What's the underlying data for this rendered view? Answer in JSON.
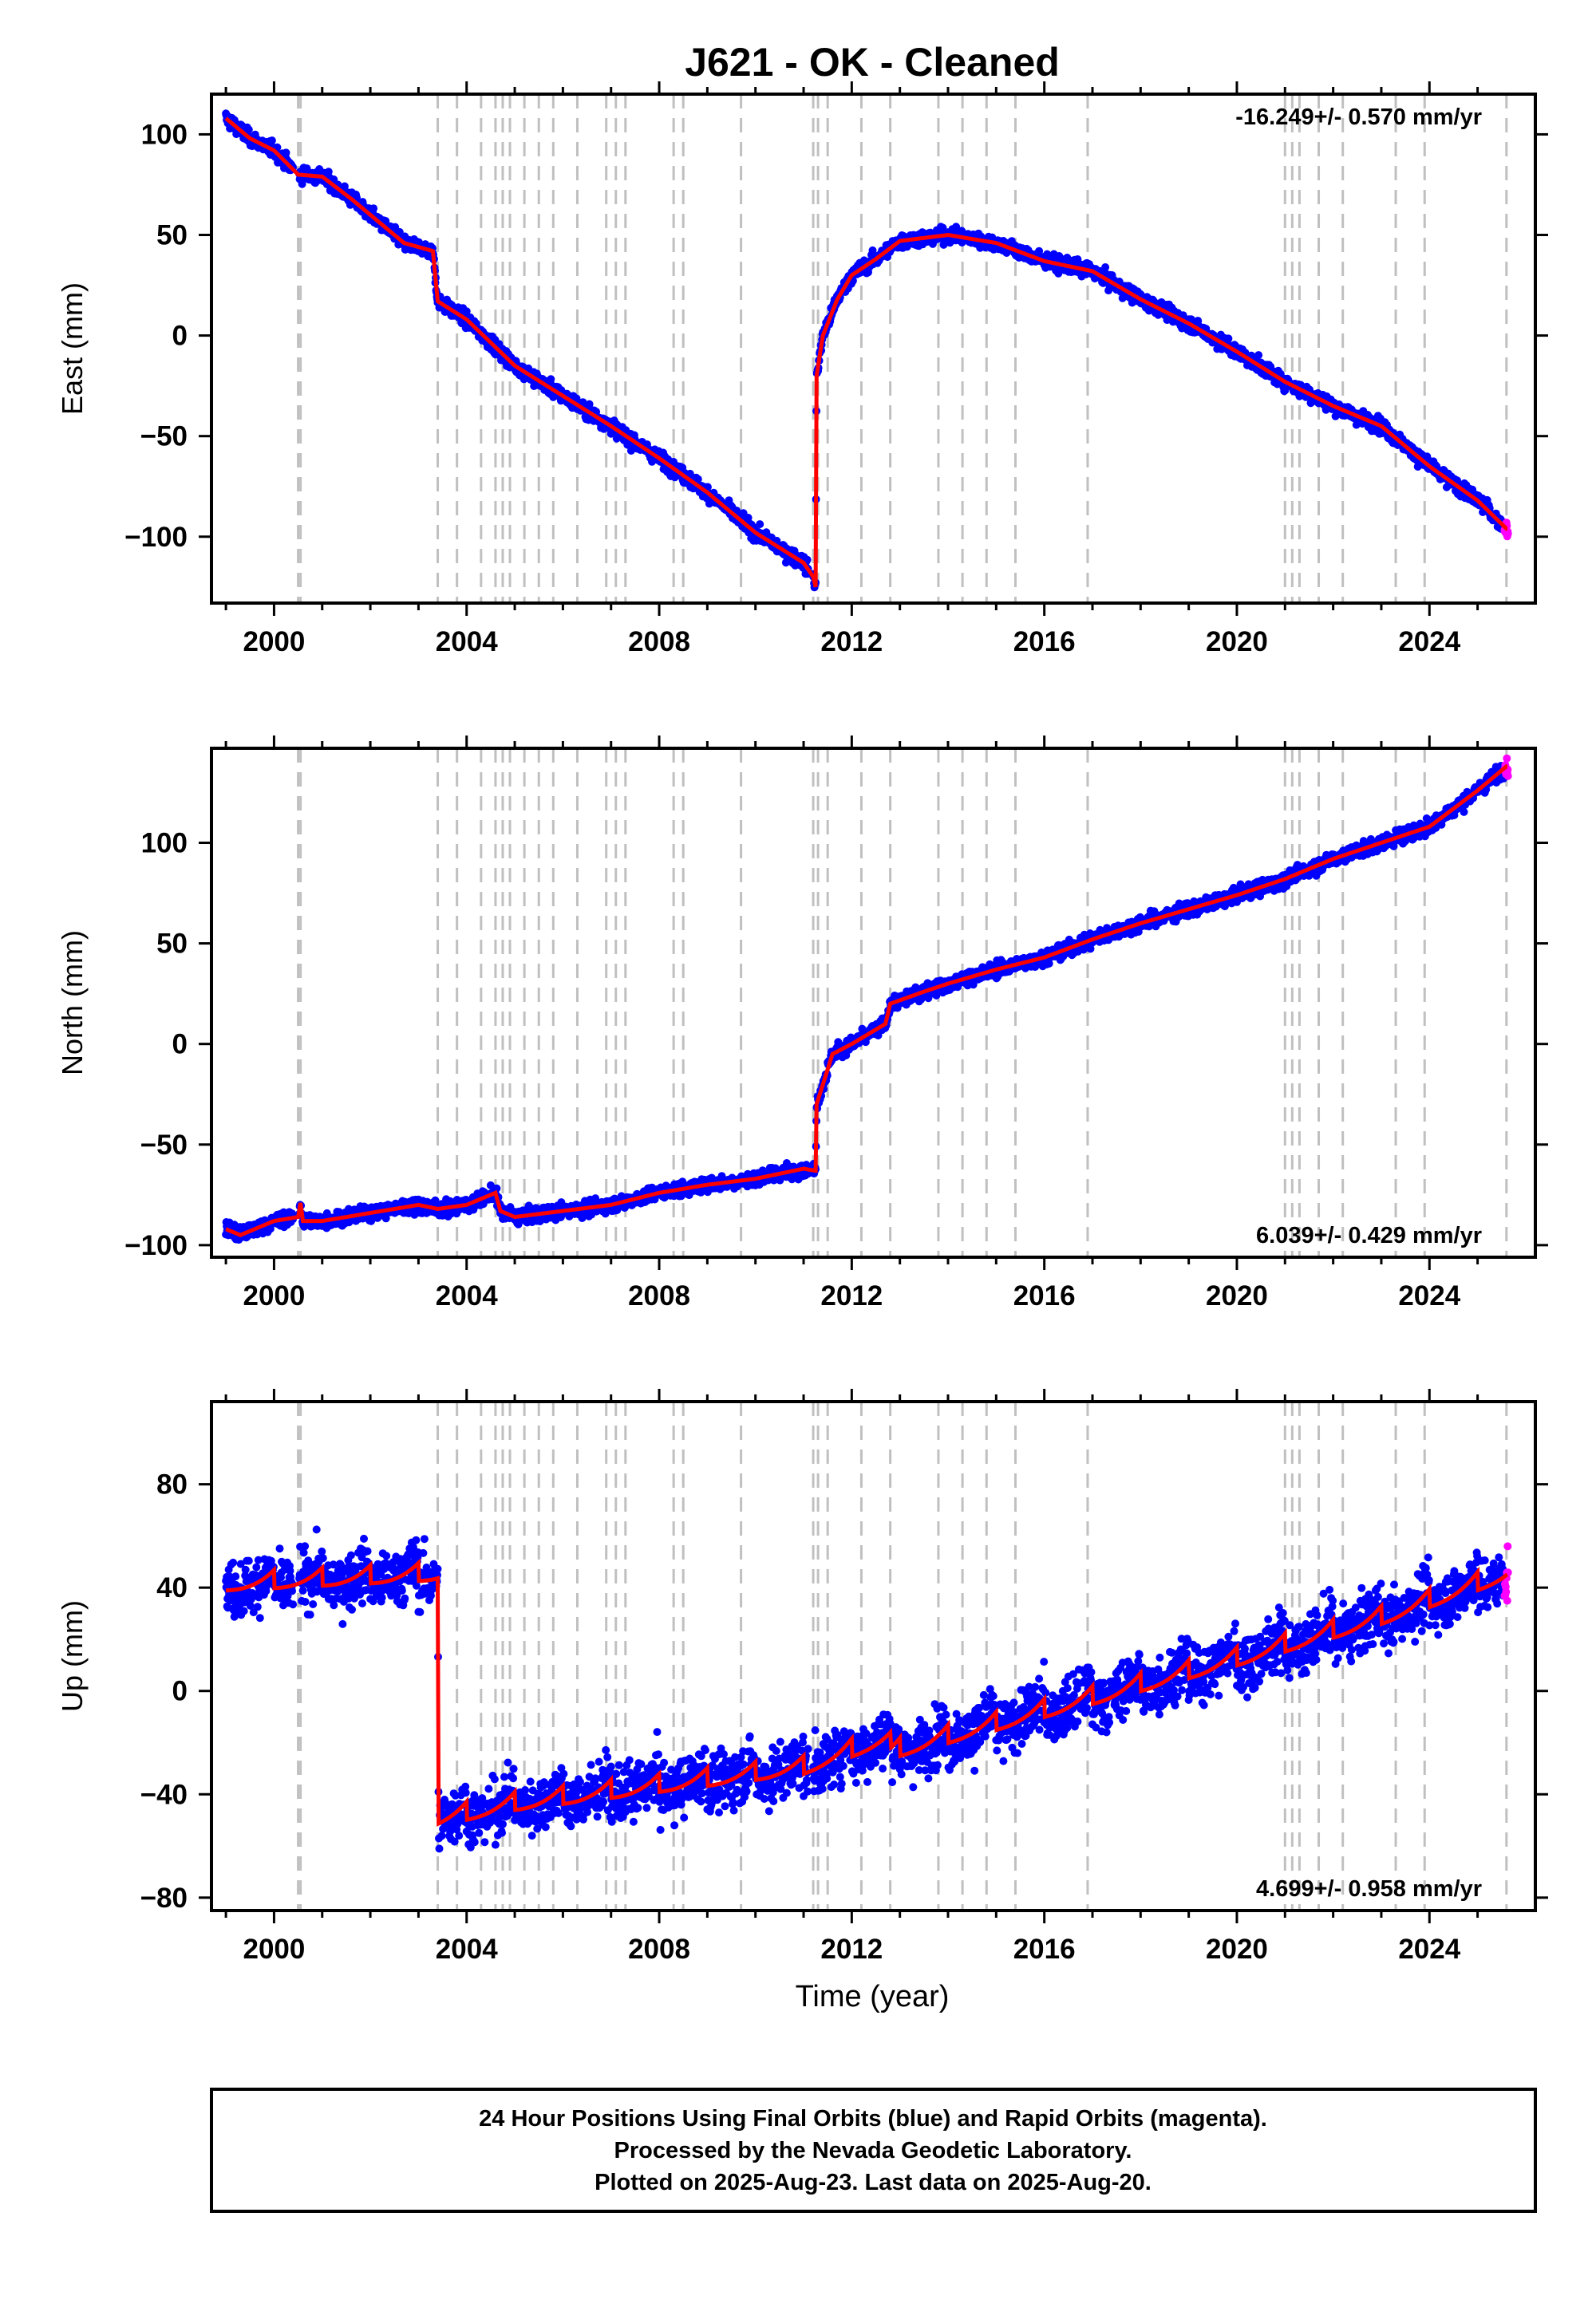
{
  "title": "J621  - OK - Cleaned",
  "footer": {
    "lines": [
      "24 Hour Positions Using Final Orbits (blue) and Rapid Orbits (magenta).",
      "Processed by the Nevada Geodetic Laboratory.",
      "Plotted on 2025-Aug-23. Last data on 2025-Aug-20."
    ]
  },
  "colors": {
    "final_orbits": "#0000ff",
    "rapid_orbits": "#ff00ff",
    "model": "#ff0000",
    "event_lines": "#c0c0c0"
  },
  "chart_data": [
    {
      "type": "scatter",
      "component": "East",
      "ylabel": "East (mm)",
      "xlim": [
        1998.7,
        2026.2
      ],
      "ylim": [
        -133,
        120
      ],
      "xticks": [
        2000,
        2004,
        2008,
        2012,
        2016,
        2020,
        2024
      ],
      "yticks": [
        100,
        50,
        0,
        -50,
        -100
      ],
      "ytick_labels": [
        "100",
        "50",
        "0",
        "−50",
        "−100"
      ],
      "rate_label": "-16.249+/- 0.570 mm/yr",
      "rate_position": "top-right",
      "event_lines": [
        2000.5,
        2000.55,
        2003.4,
        2003.8,
        2004.3,
        2004.6,
        2004.75,
        2004.9,
        2005.2,
        2005.5,
        2005.8,
        2006.3,
        2006.9,
        2007.1,
        2007.3,
        2008.3,
        2008.5,
        2009.7,
        2011.2,
        2011.3,
        2011.5,
        2012.2,
        2012.8,
        2013.8,
        2014.3,
        2014.8,
        2015.4,
        2016.9,
        2021.0,
        2021.15,
        2021.3,
        2021.7,
        2022.2,
        2023.3,
        2023.9,
        2025.6
      ],
      "model_knots": [
        [
          1999.0,
          108
        ],
        [
          1999.5,
          98
        ],
        [
          2000.0,
          92
        ],
        [
          2000.5,
          80
        ],
        [
          2001.0,
          79
        ],
        [
          2001.6,
          68
        ],
        [
          2002.2,
          56
        ],
        [
          2002.7,
          46
        ],
        [
          2003.3,
          42
        ],
        [
          2003.4,
          17
        ],
        [
          2004.0,
          8
        ],
        [
          2005.0,
          -15
        ],
        [
          2006.0,
          -30
        ],
        [
          2007.0,
          -45
        ],
        [
          2008.0,
          -61
        ],
        [
          2009.0,
          -78
        ],
        [
          2010.0,
          -98
        ],
        [
          2011.0,
          -113
        ],
        [
          2011.2,
          -120
        ],
        [
          2011.25,
          -125
        ],
        [
          2011.27,
          -20
        ],
        [
          2011.4,
          0
        ],
        [
          2011.7,
          18
        ],
        [
          2012.0,
          30
        ],
        [
          2012.5,
          38
        ],
        [
          2013.0,
          47
        ],
        [
          2014.0,
          50
        ],
        [
          2015.0,
          46
        ],
        [
          2016.0,
          37
        ],
        [
          2017.0,
          32
        ],
        [
          2018.0,
          18
        ],
        [
          2019.0,
          6
        ],
        [
          2020.0,
          -8
        ],
        [
          2021.0,
          -23
        ],
        [
          2022.0,
          -35
        ],
        [
          2023.0,
          -45
        ],
        [
          2024.0,
          -65
        ],
        [
          2025.0,
          -82
        ],
        [
          2025.6,
          -96
        ]
      ],
      "series": [
        {
          "name": "Final Orbits",
          "color": "#0000ff"
        },
        {
          "name": "Rapid Orbits",
          "color": "#ff00ff"
        },
        {
          "name": "Model",
          "color": "#ff0000"
        }
      ]
    },
    {
      "type": "scatter",
      "component": "North",
      "ylabel": "North (mm)",
      "xlim": [
        1998.7,
        2026.2
      ],
      "ylim": [
        -106,
        147
      ],
      "xticks": [
        2000,
        2004,
        2008,
        2012,
        2016,
        2020,
        2024
      ],
      "yticks": [
        100,
        50,
        0,
        -50,
        -100
      ],
      "ytick_labels": [
        "100",
        "50",
        "0",
        "−50",
        "−100"
      ],
      "rate_label": "6.039+/- 0.429 mm/yr",
      "rate_position": "bottom-right",
      "event_lines": [
        2000.5,
        2000.55,
        2003.4,
        2003.8,
        2004.3,
        2004.6,
        2004.75,
        2004.9,
        2005.2,
        2005.5,
        2005.8,
        2006.3,
        2006.9,
        2007.1,
        2007.3,
        2008.3,
        2008.5,
        2009.7,
        2011.2,
        2011.3,
        2011.5,
        2012.2,
        2012.8,
        2013.8,
        2014.3,
        2014.8,
        2015.4,
        2016.9,
        2021.0,
        2021.15,
        2021.3,
        2021.7,
        2022.2,
        2023.3,
        2023.9,
        2025.6
      ],
      "model_knots": [
        [
          1999.0,
          -92
        ],
        [
          1999.3,
          -95
        ],
        [
          2000.0,
          -88
        ],
        [
          2000.5,
          -86
        ],
        [
          2000.55,
          -79
        ],
        [
          2000.6,
          -88
        ],
        [
          2001.0,
          -88
        ],
        [
          2002.0,
          -84
        ],
        [
          2003.0,
          -80
        ],
        [
          2003.4,
          -82
        ],
        [
          2004.0,
          -80
        ],
        [
          2004.6,
          -74
        ],
        [
          2004.7,
          -83
        ],
        [
          2005.0,
          -86
        ],
        [
          2006.0,
          -83
        ],
        [
          2007.0,
          -80
        ],
        [
          2008.0,
          -74
        ],
        [
          2009.0,
          -70
        ],
        [
          2010.0,
          -67
        ],
        [
          2011.0,
          -62
        ],
        [
          2011.25,
          -63
        ],
        [
          2011.27,
          -30
        ],
        [
          2011.6,
          -5
        ],
        [
          2012.0,
          0
        ],
        [
          2012.7,
          10
        ],
        [
          2012.8,
          20
        ],
        [
          2013.5,
          26
        ],
        [
          2014.0,
          30
        ],
        [
          2015.0,
          37
        ],
        [
          2016.0,
          43
        ],
        [
          2017.0,
          52
        ],
        [
          2018.0,
          60
        ],
        [
          2019.0,
          67
        ],
        [
          2020.0,
          74
        ],
        [
          2021.0,
          82
        ],
        [
          2022.0,
          92
        ],
        [
          2023.0,
          100
        ],
        [
          2024.0,
          108
        ],
        [
          2025.0,
          126
        ],
        [
          2025.6,
          138
        ]
      ],
      "series": [
        {
          "name": "Final Orbits",
          "color": "#0000ff"
        },
        {
          "name": "Rapid Orbits",
          "color": "#ff00ff"
        },
        {
          "name": "Model",
          "color": "#ff0000"
        }
      ]
    },
    {
      "type": "scatter",
      "component": "Up",
      "ylabel": "Up (mm)",
      "xlabel": "Time (year)",
      "xlim": [
        1998.7,
        2026.2
      ],
      "ylim": [
        -85,
        112
      ],
      "xticks": [
        2000,
        2004,
        2008,
        2012,
        2016,
        2020,
        2024
      ],
      "yticks": [
        80,
        40,
        0,
        -40,
        -80
      ],
      "ytick_labels": [
        "80",
        "40",
        "0",
        "−40",
        "−80"
      ],
      "rate_label": "4.699+/- 0.958 mm/yr",
      "rate_position": "bottom-right",
      "event_lines": [
        2000.5,
        2000.55,
        2003.4,
        2003.8,
        2004.3,
        2004.6,
        2004.75,
        2004.9,
        2005.2,
        2005.5,
        2005.8,
        2006.3,
        2006.9,
        2007.1,
        2007.3,
        2008.3,
        2008.5,
        2009.7,
        2011.2,
        2011.3,
        2011.5,
        2012.2,
        2012.8,
        2013.8,
        2014.3,
        2014.8,
        2015.4,
        2016.9,
        2021.0,
        2021.15,
        2021.3,
        2021.7,
        2022.2,
        2023.3,
        2023.9,
        2025.6
      ],
      "model_trend": [
        [
          1999.0,
          41
        ],
        [
          2003.4,
          45
        ],
        [
          2003.42,
          -50
        ],
        [
          2005.0,
          -44
        ],
        [
          2008.0,
          -37
        ],
        [
          2011.0,
          -30
        ],
        [
          2012.8,
          -18
        ],
        [
          2012.82,
          -24
        ],
        [
          2016.0,
          -8
        ],
        [
          2020.0,
          12
        ],
        [
          2023.0,
          28
        ],
        [
          2025.6,
          45
        ]
      ],
      "seasonal_amplitude_mm": 7,
      "series": [
        {
          "name": "Final Orbits",
          "color": "#0000ff"
        },
        {
          "name": "Rapid Orbits",
          "color": "#ff00ff"
        },
        {
          "name": "Model",
          "color": "#ff0000"
        }
      ]
    }
  ]
}
